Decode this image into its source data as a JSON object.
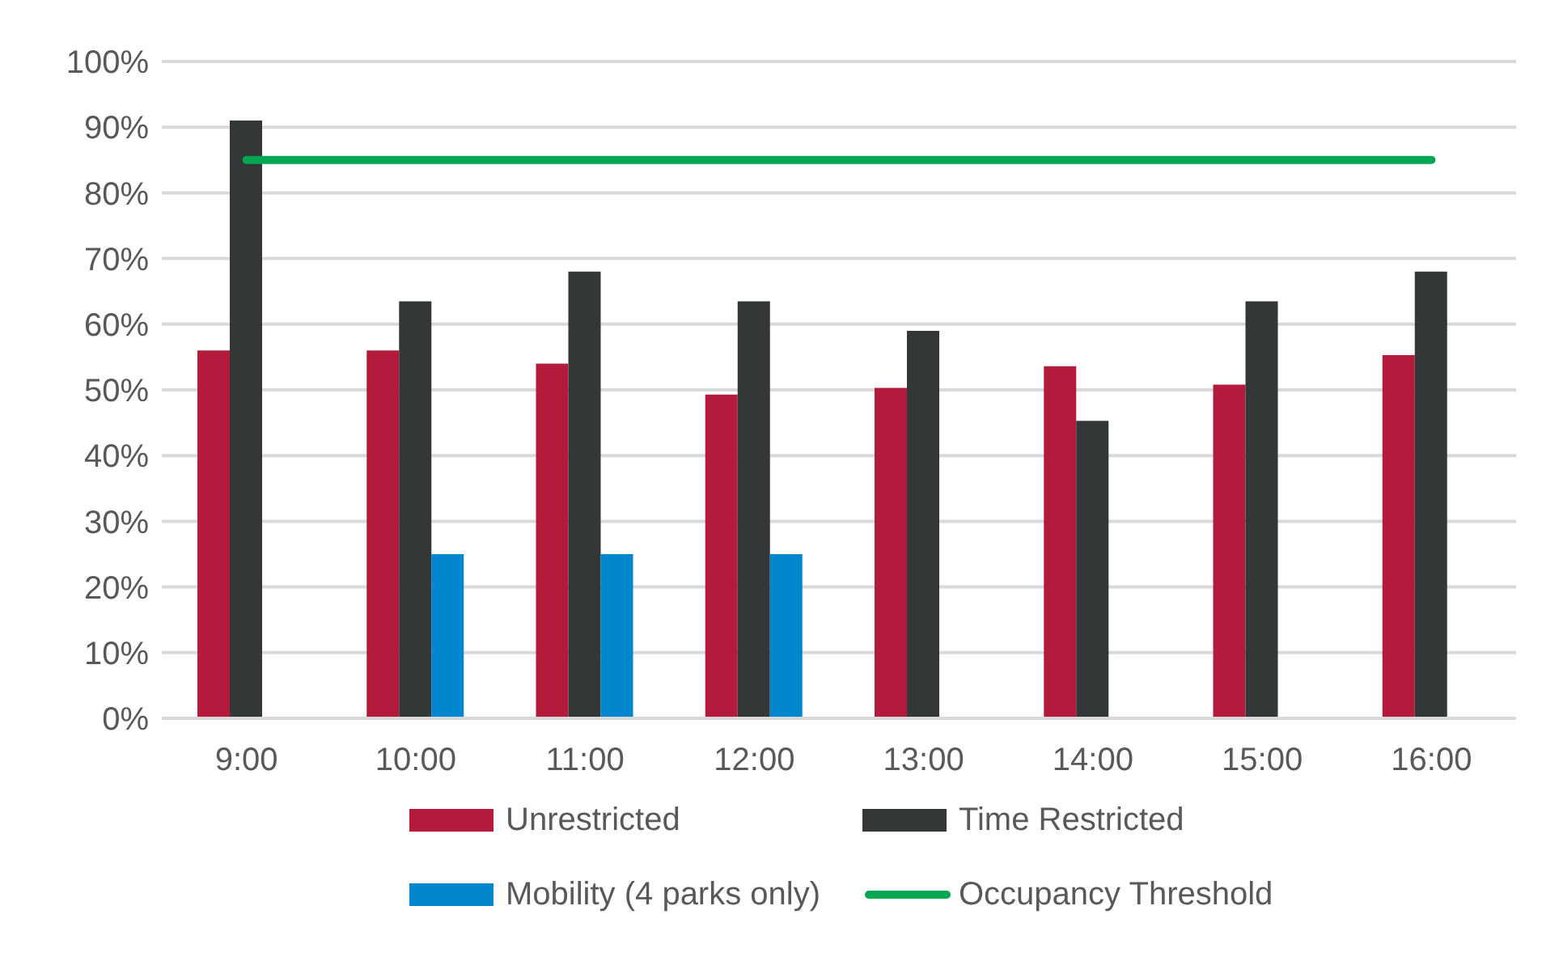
{
  "chart_data": {
    "type": "bar",
    "categories": [
      "9:00",
      "10:00",
      "11:00",
      "12:00",
      "13:00",
      "14:00",
      "15:00",
      "16:00"
    ],
    "series": [
      {
        "name": "Unrestricted",
        "color": "#b31a3c",
        "values": [
          56,
          56,
          54,
          49.3,
          50.3,
          53.6,
          50.8,
          55.3
        ]
      },
      {
        "name": "Time Restricted",
        "color": "#343738",
        "values": [
          91,
          63.5,
          68,
          63.5,
          59,
          45.3,
          63.5,
          68
        ]
      },
      {
        "name": "Mobility (4 parks only)",
        "color": "#0086cc",
        "values": [
          null,
          25,
          25,
          25,
          null,
          null,
          null,
          null
        ]
      },
      {
        "name": "Occupancy Threshold",
        "type": "line",
        "color": "#00a651",
        "values": [
          85,
          85,
          85,
          85,
          85,
          85,
          85,
          85
        ]
      }
    ],
    "ylim": [
      0,
      100
    ],
    "yticks": [
      {
        "value": 0,
        "label": "0%"
      },
      {
        "value": 10,
        "label": "10%"
      },
      {
        "value": 20,
        "label": "20%"
      },
      {
        "value": 30,
        "label": "30%"
      },
      {
        "value": 40,
        "label": "40%"
      },
      {
        "value": 50,
        "label": "50%"
      },
      {
        "value": 60,
        "label": "60%"
      },
      {
        "value": 70,
        "label": "70%"
      },
      {
        "value": 80,
        "label": "80%"
      },
      {
        "value": 90,
        "label": "90%"
      },
      {
        "value": 100,
        "label": "100%"
      }
    ],
    "grid": "y",
    "legend": "bottom",
    "marker": "none"
  }
}
